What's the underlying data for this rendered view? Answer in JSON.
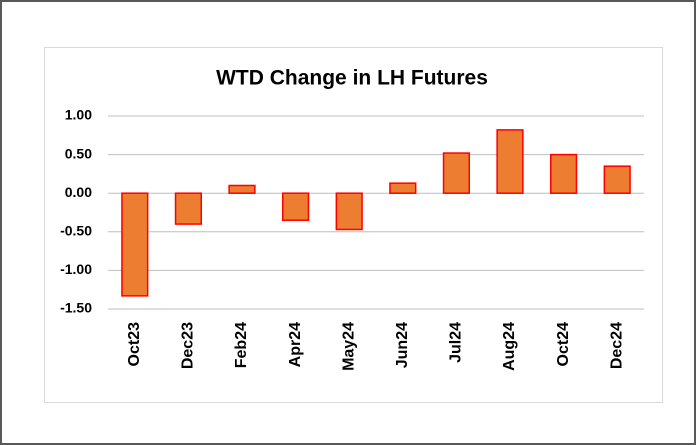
{
  "chart_data": {
    "type": "bar",
    "title": "WTD Change in LH Futures",
    "categories": [
      "Oct23",
      "Dec23",
      "Feb24",
      "Apr24",
      "May24",
      "Jun24",
      "Jul24",
      "Aug24",
      "Oct24",
      "Dec24"
    ],
    "values": [
      -1.33,
      -0.4,
      0.1,
      -0.35,
      -0.47,
      0.13,
      0.52,
      0.82,
      0.5,
      0.35
    ],
    "color": "#ed7d31",
    "edge_color": "#ff0000",
    "ylim": [
      -1.5,
      1.0
    ],
    "yticks": [
      {
        "value": -1.5,
        "label": "-1.50"
      },
      {
        "value": -1.0,
        "label": "-1.00"
      },
      {
        "value": -0.5,
        "label": "-0.50"
      },
      {
        "value": 0,
        "label": "0.00"
      },
      {
        "value": 0.5,
        "label": "0.50"
      },
      {
        "value": 1.0,
        "label": "1.00"
      }
    ],
    "grid": true
  }
}
